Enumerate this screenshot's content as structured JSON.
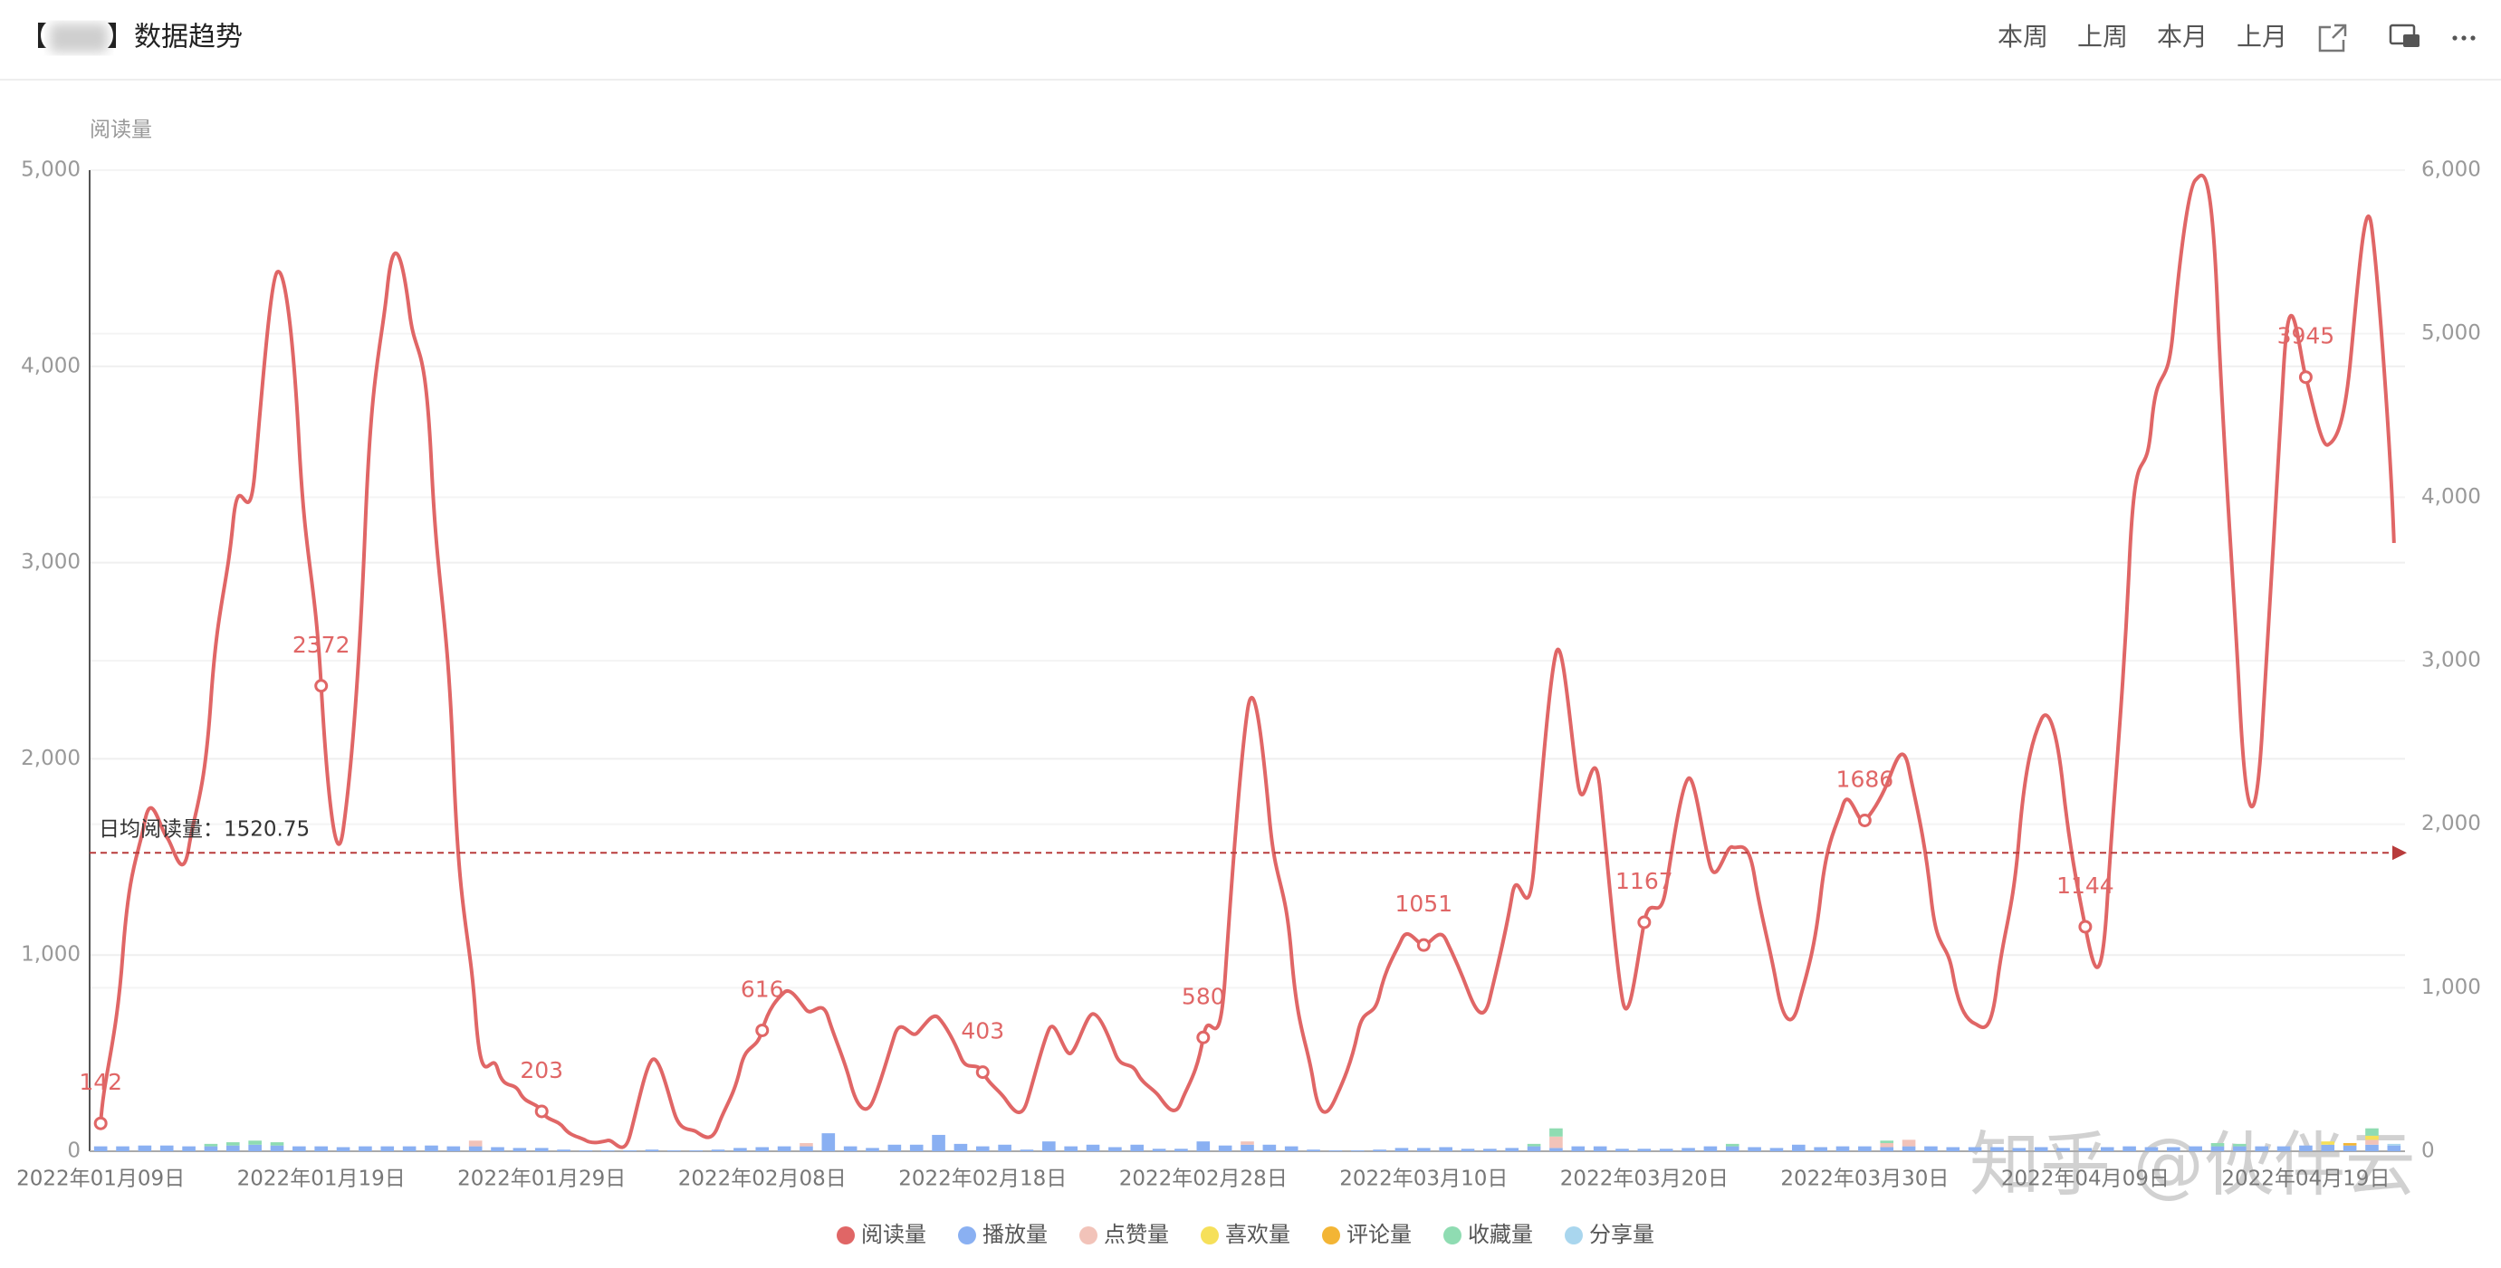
{
  "header": {
    "title_open": "【",
    "title": "】数据趋势",
    "buttons": [
      "本周",
      "上周",
      "本月",
      "上月"
    ]
  },
  "watermark": "知乎 @伙伴云",
  "chart_data": {
    "type": "combo",
    "y_axis_label": "阅读量",
    "categories": [
      "2022年01月09日",
      null,
      null,
      null,
      null,
      null,
      null,
      null,
      null,
      null,
      "2022年01月19日",
      null,
      null,
      null,
      null,
      null,
      null,
      null,
      null,
      null,
      "2022年01月29日",
      null,
      null,
      null,
      null,
      null,
      null,
      null,
      null,
      null,
      "2022年02月08日",
      null,
      null,
      null,
      null,
      null,
      null,
      null,
      null,
      null,
      "2022年02月18日",
      null,
      null,
      null,
      null,
      null,
      null,
      null,
      null,
      null,
      "2022年02月28日",
      null,
      null,
      null,
      null,
      null,
      null,
      null,
      null,
      null,
      "2022年03月10日",
      null,
      null,
      null,
      null,
      null,
      null,
      null,
      null,
      null,
      "2022年03月20日",
      null,
      null,
      null,
      null,
      null,
      null,
      null,
      null,
      null,
      "2022年03月30日",
      null,
      null,
      null,
      null,
      null,
      null,
      null,
      null,
      null,
      "2022年04月09日",
      null,
      null,
      null,
      null,
      null,
      null,
      null,
      null,
      null,
      "2022年04月19日",
      null,
      null,
      null,
      null
    ],
    "ylim": [
      0,
      5000
    ],
    "yticks": [
      0,
      {
        "value": 1000,
        "label": "1,000"
      },
      {
        "value": 2000,
        "label": "2,000"
      },
      {
        "value": 3000,
        "label": "3,000"
      },
      {
        "value": 4000,
        "label": "4,000"
      },
      {
        "value": 5000,
        "label": "5,000"
      }
    ],
    "y2lim": [
      0,
      6000
    ],
    "y2ticks": [
      0,
      {
        "value": 1000,
        "label": "1,000"
      },
      {
        "value": 2000,
        "label": "2,000"
      },
      {
        "value": 3000,
        "label": "3,000"
      },
      {
        "value": 4000,
        "label": "4,000"
      },
      {
        "value": 5000,
        "label": "5,000"
      },
      {
        "value": 6000,
        "label": "6,000"
      }
    ],
    "grid": true,
    "label_every": 10,
    "mark_line": {
      "label": "日均阅读量：",
      "value": 1520.75,
      "color": "#b83b3b"
    },
    "series": [
      {
        "name": "阅读量",
        "type": "line",
        "color": "#e06666",
        "axis": "y",
        "values": [
          142,
          1000,
          1680,
          1600,
          1550,
          2300,
          3200,
          3470,
          4480,
          3600,
          2372,
          1640,
          3190,
          4400,
          4280,
          3500,
          1970,
          700,
          420,
          300,
          203,
          120,
          55,
          55,
          80,
          465,
          200,
          100,
          130,
          420,
          616,
          810,
          720,
          680,
          350,
          250,
          590,
          600,
          680,
          480,
          403,
          270,
          250,
          620,
          500,
          700,
          500,
          400,
          280,
          250,
          580,
          900,
          2240,
          1700,
          1000,
          350,
          270,
          600,
          800,
          1080,
          1051,
          1080,
          820,
          780,
          1300,
          1450,
          2540,
          1870,
          1840,
          780,
          1167,
          1350,
          1900,
          1450,
          1550,
          1400,
          850,
          750,
          1300,
          1760,
          1686,
          1870,
          1950,
          1300,
          900,
          650,
          850,
          1600,
          2200,
          1850,
          1144,
          1280,
          3000,
          3700,
          4200,
          4950,
          4300,
          2300,
          2100,
          4000,
          3945,
          3600,
          4000,
          4700,
          3100
        ]
      },
      {
        "name": "播放量",
        "type": "bar",
        "color": "#8ab0f2",
        "axis": "y2",
        "values": [
          30,
          30,
          35,
          35,
          30,
          30,
          35,
          40,
          35,
          30,
          30,
          25,
          30,
          30,
          30,
          35,
          30,
          30,
          25,
          20,
          20,
          10,
          5,
          5,
          5,
          10,
          5,
          5,
          10,
          20,
          25,
          30,
          30,
          110,
          30,
          20,
          40,
          40,
          100,
          45,
          30,
          40,
          10,
          60,
          30,
          40,
          25,
          40,
          15,
          15,
          60,
          35,
          40,
          40,
          30,
          10,
          5,
          5,
          10,
          20,
          20,
          25,
          15,
          15,
          20,
          30,
          20,
          30,
          30,
          15,
          15,
          15,
          20,
          30,
          30,
          25,
          20,
          40,
          25,
          30,
          30,
          25,
          30,
          30,
          25,
          25,
          25,
          20,
          25,
          20,
          20,
          25,
          30,
          25,
          25,
          30,
          30,
          30,
          30,
          30,
          35,
          40,
          35,
          40,
          35
        ]
      },
      {
        "name": "点赞量",
        "type": "bar",
        "color": "#f2c3b9",
        "axis": "y2",
        "values": [
          0,
          0,
          0,
          0,
          0,
          0,
          0,
          0,
          0,
          0,
          0,
          0,
          0,
          0,
          0,
          0,
          0,
          35,
          0,
          0,
          0,
          0,
          0,
          0,
          0,
          0,
          0,
          0,
          0,
          0,
          0,
          0,
          20,
          0,
          0,
          0,
          0,
          0,
          0,
          0,
          0,
          0,
          0,
          0,
          0,
          0,
          0,
          0,
          0,
          0,
          0,
          0,
          20,
          0,
          0,
          0,
          0,
          0,
          0,
          0,
          0,
          0,
          0,
          0,
          0,
          0,
          70,
          0,
          0,
          0,
          0,
          0,
          0,
          0,
          0,
          0,
          0,
          0,
          0,
          0,
          0,
          25,
          40,
          0,
          0,
          0,
          0,
          0,
          0,
          0,
          0,
          0,
          0,
          0,
          0,
          0,
          0,
          0,
          0,
          0,
          0,
          0,
          0,
          30,
          0
        ]
      },
      {
        "name": "喜欢量",
        "type": "bar",
        "color": "#f6e05a",
        "axis": "y2",
        "values": [
          0,
          0,
          0,
          0,
          0,
          0,
          0,
          0,
          0,
          0,
          0,
          0,
          0,
          0,
          0,
          0,
          0,
          0,
          0,
          0,
          0,
          0,
          0,
          0,
          0,
          0,
          0,
          0,
          0,
          0,
          0,
          0,
          0,
          0,
          0,
          0,
          0,
          0,
          0,
          0,
          0,
          0,
          0,
          0,
          0,
          0,
          0,
          0,
          0,
          0,
          0,
          0,
          0,
          0,
          0,
          0,
          0,
          0,
          0,
          0,
          0,
          0,
          0,
          0,
          0,
          0,
          0,
          0,
          0,
          0,
          0,
          0,
          0,
          0,
          0,
          0,
          0,
          0,
          0,
          0,
          0,
          0,
          0,
          0,
          0,
          0,
          0,
          0,
          0,
          0,
          0,
          0,
          0,
          0,
          0,
          0,
          0,
          0,
          0,
          0,
          0,
          20,
          0,
          25,
          0
        ]
      },
      {
        "name": "评论量",
        "type": "bar",
        "color": "#f3b535",
        "axis": "y2",
        "values": [
          0,
          0,
          0,
          0,
          0,
          0,
          0,
          0,
          0,
          0,
          0,
          0,
          0,
          0,
          0,
          0,
          0,
          0,
          0,
          0,
          0,
          0,
          0,
          0,
          0,
          0,
          0,
          0,
          0,
          0,
          0,
          0,
          0,
          0,
          0,
          0,
          0,
          0,
          0,
          0,
          0,
          0,
          0,
          0,
          0,
          0,
          0,
          0,
          0,
          0,
          0,
          0,
          0,
          0,
          0,
          0,
          0,
          0,
          0,
          0,
          0,
          0,
          0,
          0,
          0,
          0,
          0,
          0,
          0,
          0,
          0,
          0,
          0,
          0,
          0,
          0,
          0,
          0,
          0,
          0,
          0,
          0,
          0,
          0,
          0,
          0,
          0,
          0,
          0,
          0,
          0,
          0,
          0,
          0,
          0,
          0,
          0,
          0,
          0,
          0,
          0,
          0,
          15,
          0,
          0
        ]
      },
      {
        "name": "收藏量",
        "type": "bar",
        "color": "#8fdcb2",
        "axis": "y2",
        "values": [
          0,
          0,
          0,
          0,
          0,
          15,
          20,
          25,
          20,
          0,
          0,
          0,
          0,
          0,
          0,
          0,
          0,
          0,
          0,
          0,
          0,
          0,
          0,
          0,
          0,
          0,
          0,
          0,
          0,
          0,
          0,
          0,
          0,
          0,
          0,
          0,
          0,
          0,
          0,
          0,
          0,
          0,
          0,
          0,
          0,
          0,
          0,
          0,
          0,
          0,
          0,
          0,
          0,
          0,
          0,
          0,
          0,
          0,
          0,
          0,
          0,
          0,
          0,
          0,
          0,
          15,
          50,
          0,
          0,
          0,
          0,
          0,
          0,
          0,
          15,
          0,
          0,
          0,
          0,
          0,
          0,
          15,
          0,
          0,
          0,
          0,
          0,
          0,
          0,
          0,
          0,
          0,
          0,
          0,
          0,
          0,
          20,
          15,
          0,
          0,
          0,
          0,
          0,
          45,
          0
        ]
      },
      {
        "name": "分享量",
        "type": "bar",
        "color": "#a9d6ee",
        "axis": "y2",
        "values": [
          0,
          0,
          0,
          0,
          0,
          0,
          0,
          0,
          0,
          0,
          0,
          0,
          0,
          0,
          0,
          0,
          0,
          0,
          0,
          0,
          0,
          0,
          0,
          0,
          0,
          0,
          0,
          0,
          0,
          0,
          0,
          0,
          0,
          0,
          0,
          0,
          0,
          0,
          0,
          0,
          0,
          0,
          0,
          0,
          0,
          0,
          0,
          0,
          0,
          0,
          0,
          0,
          0,
          0,
          0,
          0,
          0,
          0,
          0,
          0,
          0,
          0,
          0,
          0,
          0,
          0,
          0,
          0,
          0,
          0,
          0,
          0,
          0,
          0,
          0,
          0,
          0,
          0,
          0,
          0,
          0,
          0,
          0,
          0,
          0,
          0,
          0,
          0,
          0,
          0,
          0,
          0,
          0,
          0,
          0,
          0,
          0,
          0,
          0,
          0,
          0,
          0,
          0,
          0,
          10
        ]
      }
    ]
  }
}
